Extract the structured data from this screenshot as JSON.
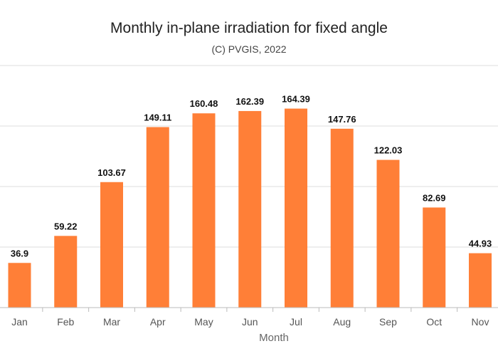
{
  "chart_data": {
    "type": "bar",
    "title": "Monthly in-plane irradiation for fixed angle",
    "subtitle": "(C) PVGIS, 2022",
    "xlabel": "Month",
    "ylabel": "",
    "categories": [
      "Jan",
      "Feb",
      "Mar",
      "Apr",
      "May",
      "Jun",
      "Jul",
      "Aug",
      "Sep",
      "Oct",
      "Nov"
    ],
    "values": [
      36.9,
      59.22,
      103.67,
      149.11,
      160.48,
      162.39,
      164.39,
      147.76,
      122.03,
      82.69,
      44.93
    ],
    "data_labels": [
      "36.9",
      "59.22",
      "103.67",
      "149.11",
      "160.48",
      "162.39",
      "164.39",
      "147.76",
      "122.03",
      "82.69",
      "44.93"
    ],
    "ylim": [
      0,
      200
    ],
    "grid": true,
    "colors": {
      "bar": "#FF7F37",
      "gridline": "#DDDDDD",
      "axis": "#BBBBBB"
    }
  }
}
